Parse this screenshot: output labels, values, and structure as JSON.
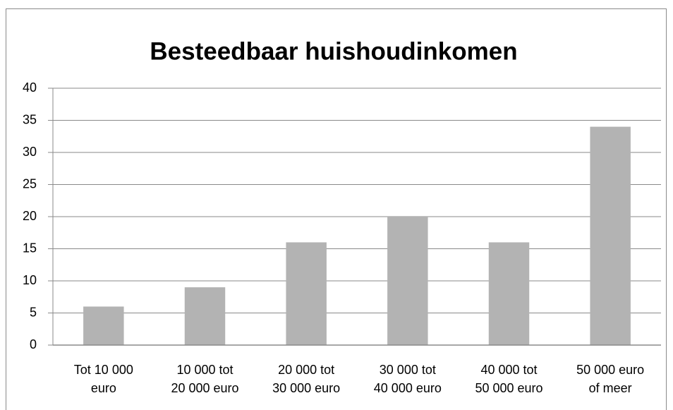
{
  "chart_data": {
    "type": "bar",
    "title": "Besteedbaar huishoudinkomen",
    "categories": [
      "Tot 10 000\neuro",
      "10 000 tot\n20 000 euro",
      "20 000 tot\n30 000 euro",
      "30 000 tot\n40 000 euro",
      "40 000 tot\n50 000 euro",
      "50 000 euro\nof meer"
    ],
    "values": [
      6,
      9,
      16,
      20,
      16,
      34
    ],
    "color": "#b3b3b3",
    "ylim": [
      0,
      40
    ],
    "yticks": [
      0,
      5,
      10,
      15,
      20,
      25,
      30,
      35,
      40
    ],
    "grid": true
  }
}
